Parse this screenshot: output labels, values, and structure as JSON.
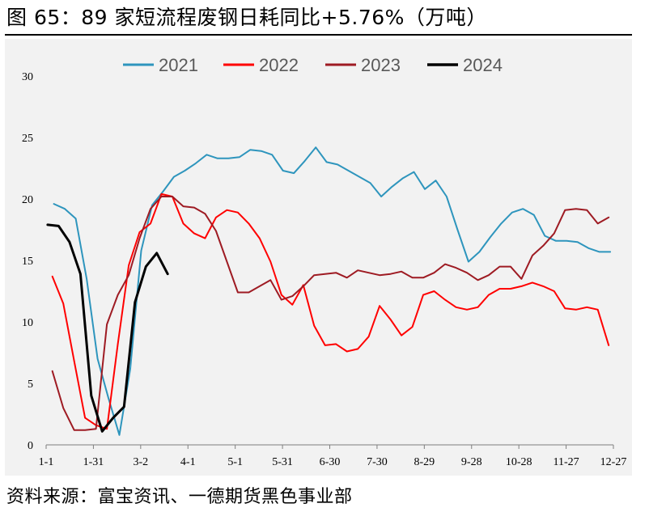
{
  "header": {
    "title": "图 65：89 家短流程废钢日耗同比+5.76%（万吨）"
  },
  "footer": {
    "source": "资料来源：富宝资讯、一德期货黑色事业部"
  },
  "colors": {
    "s2021": "#2e95bd",
    "s2022": "#ff0000",
    "s2023": "#9e1b23",
    "s2024": "#000000",
    "panel": "#f2f2f2"
  },
  "chart_data": {
    "type": "line",
    "title": "图 65：89 家短流程废钢日耗同比+5.76%（万吨）",
    "xlabel": "",
    "ylabel": "",
    "ylim": [
      0,
      30
    ],
    "yticks": [
      0,
      5,
      10,
      15,
      20,
      25,
      30
    ],
    "xticks": [
      "1-1",
      "1-31",
      "3-2",
      "4-1",
      "5-1",
      "5-31",
      "6-30",
      "7-30",
      "8-29",
      "9-28",
      "10-28",
      "11-27",
      "12-27"
    ],
    "xlim_days": [
      1,
      365
    ],
    "grid": false,
    "legend_position": "top",
    "series": [
      {
        "name": "2021",
        "color": "#2e95bd",
        "x": [
          6,
          13,
          20,
          27,
          34,
          41,
          48,
          55,
          62,
          69,
          76,
          83,
          90,
          97,
          104,
          111,
          118,
          125,
          132,
          139,
          146,
          153,
          160,
          167,
          174,
          181,
          188,
          195,
          202,
          209,
          216,
          223,
          230,
          237,
          244,
          251,
          258,
          265,
          272,
          279,
          286,
          293,
          300,
          307,
          314,
          321,
          328,
          335,
          342,
          349,
          356,
          363
        ],
        "y": [
          19.6,
          19.2,
          18.4,
          13.5,
          7.0,
          3.8,
          0.8,
          6.2,
          15.8,
          19.5,
          20.6,
          21.8,
          22.3,
          22.9,
          23.6,
          23.3,
          23.3,
          23.4,
          24.0,
          23.9,
          23.6,
          22.3,
          22.1,
          23.1,
          24.2,
          23.0,
          22.8,
          22.3,
          21.8,
          21.3,
          20.2,
          21.0,
          21.7,
          22.2,
          20.8,
          21.5,
          20.2,
          17.5,
          14.9,
          15.7,
          16.9,
          18.0,
          18.9,
          19.2,
          18.7,
          17.0,
          16.6,
          16.6,
          16.5,
          16.0,
          15.7,
          15.7
        ]
      },
      {
        "name": "2022",
        "color": "#ff0000",
        "x": [
          5,
          12,
          19,
          26,
          33,
          40,
          47,
          54,
          61,
          68,
          75,
          82,
          89,
          96,
          103,
          110,
          117,
          124,
          131,
          138,
          145,
          152,
          159,
          166,
          173,
          180,
          187,
          194,
          201,
          208,
          215,
          222,
          229,
          236,
          243,
          250,
          257,
          264,
          271,
          278,
          285,
          292,
          299,
          306,
          313,
          320,
          327,
          334,
          341,
          348,
          355,
          362
        ],
        "y": [
          13.7,
          11.5,
          6.8,
          2.2,
          1.6,
          1.3,
          8.2,
          14.6,
          17.3,
          18.0,
          20.4,
          20.2,
          18.0,
          17.2,
          16.8,
          18.5,
          19.1,
          18.9,
          18.0,
          16.8,
          14.9,
          12.2,
          11.4,
          13.0,
          9.7,
          8.1,
          8.2,
          7.6,
          7.8,
          8.8,
          11.3,
          10.2,
          8.9,
          9.6,
          12.2,
          12.5,
          11.8,
          11.2,
          11.0,
          11.2,
          12.2,
          12.7,
          12.7,
          12.9,
          13.2,
          12.9,
          12.5,
          11.1,
          11.0,
          11.2,
          11.0,
          8.1
        ]
      },
      {
        "name": "2023",
        "color": "#9e1b23",
        "x": [
          5,
          12,
          19,
          26,
          33,
          40,
          47,
          54,
          61,
          68,
          75,
          82,
          89,
          96,
          103,
          110,
          117,
          124,
          131,
          138,
          145,
          152,
          159,
          166,
          173,
          180,
          187,
          194,
          201,
          208,
          215,
          222,
          229,
          236,
          243,
          250,
          257,
          264,
          271,
          278,
          285,
          292,
          299,
          306,
          313,
          320,
          327,
          334,
          341,
          348,
          355,
          362
        ],
        "y": [
          6.0,
          3.0,
          1.2,
          1.2,
          1.3,
          9.8,
          12.2,
          13.8,
          16.8,
          19.2,
          20.2,
          20.2,
          19.4,
          19.3,
          18.8,
          17.4,
          14.9,
          12.4,
          12.4,
          12.9,
          13.4,
          11.8,
          12.1,
          12.9,
          13.8,
          13.9,
          14.0,
          13.6,
          14.2,
          14.0,
          13.8,
          13.9,
          14.1,
          13.6,
          13.6,
          14.0,
          14.7,
          14.4,
          14.0,
          13.4,
          13.8,
          14.5,
          14.5,
          13.5,
          15.4,
          16.2,
          17.2,
          19.1,
          19.2,
          19.1,
          18.0,
          18.5
        ]
      },
      {
        "name": "2024",
        "color": "#000000",
        "x": [
          2,
          9,
          16,
          23,
          30,
          37,
          44,
          51,
          58,
          65,
          72,
          79
        ],
        "y": [
          17.9,
          17.8,
          16.5,
          13.9,
          4.0,
          1.1,
          2.2,
          3.1,
          11.6,
          14.5,
          15.6,
          13.9
        ]
      }
    ]
  }
}
